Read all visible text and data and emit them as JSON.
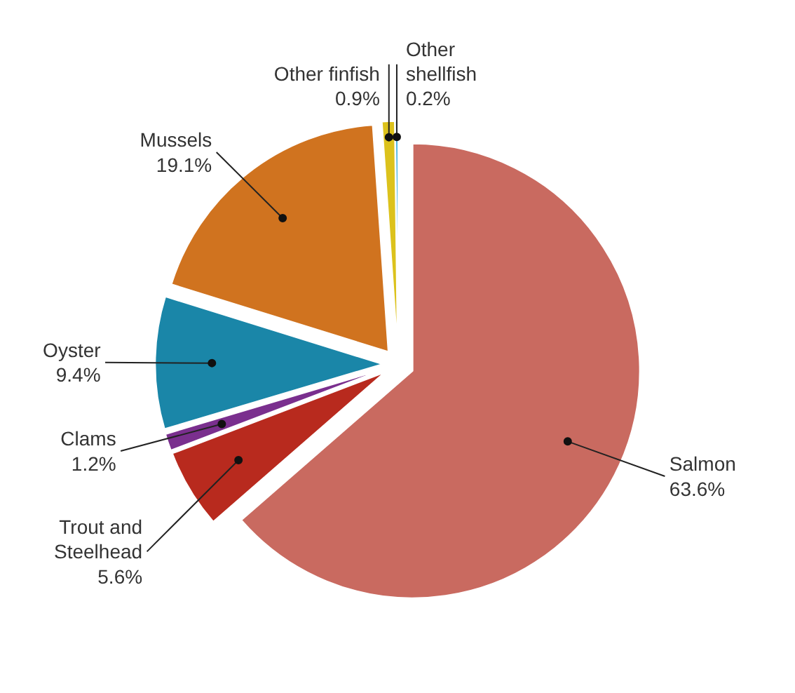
{
  "chart_data": {
    "type": "pie",
    "categories": [
      "Salmon",
      "Trout and Steelhead",
      "Clams",
      "Oyster",
      "Mussels",
      "Other finfish",
      "Other shellfish"
    ],
    "values": [
      63.6,
      5.6,
      1.2,
      9.4,
      19.1,
      0.9,
      0.2
    ],
    "value_labels": [
      "63.6%",
      "5.6%",
      "1.2%",
      "9.4%",
      "19.1%",
      "0.9%",
      "0.2%"
    ],
    "colors": [
      "#c96a60",
      "#b82a1e",
      "#7a2f8e",
      "#1a86a8",
      "#d0731f",
      "#dcc21c",
      "#2aa8dc"
    ]
  }
}
